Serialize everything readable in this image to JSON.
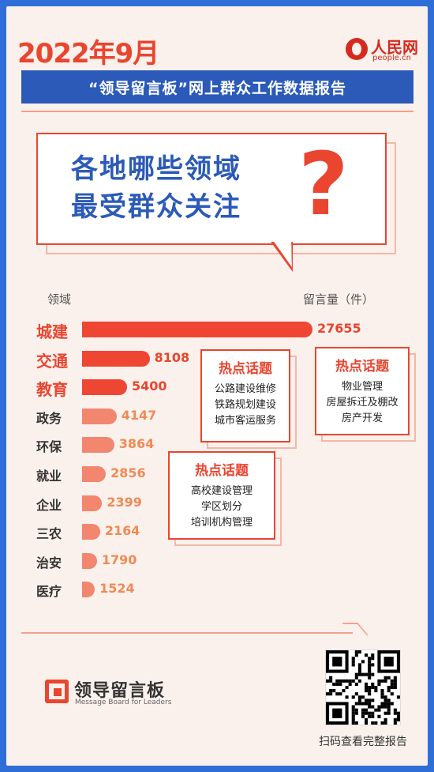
{
  "header": {
    "date": "2022年9月",
    "brand_cn": "人民网",
    "brand_url": "people.cn",
    "subtitle": "“领导留言板”网上群众工作数据报告"
  },
  "headline": {
    "line1": "各地哪些领域",
    "line2": "最受群众关注",
    "mark": "?"
  },
  "axis": {
    "left_label": "领域",
    "right_label": "留言量（件）"
  },
  "chart_data": {
    "type": "bar",
    "orientation": "horizontal",
    "categories": [
      "城建",
      "交通",
      "教育",
      "政务",
      "环保",
      "就业",
      "企业",
      "三农",
      "治安",
      "医疗"
    ],
    "values": [
      27655,
      8108,
      5400,
      4147,
      3864,
      2856,
      2399,
      2164,
      1790,
      1524
    ],
    "xlabel": "留言量（件）",
    "ylabel": "领域",
    "colors": {
      "top": "#ef4634",
      "rest": "#f2866f",
      "top_label": "#e9452f",
      "rest_label": "#ef8a55"
    }
  },
  "hot_topics": [
    {
      "title": "热点话题",
      "items": [
        "公路建设维修",
        "铁路规划建设",
        "城市客运服务"
      ]
    },
    {
      "title": "热点话题",
      "items": [
        "物业管理",
        "房屋拆迁及棚改",
        "房产开发"
      ]
    },
    {
      "title": "热点话题",
      "items": [
        "高校建设管理",
        "学区划分",
        "培训机构管理"
      ]
    }
  ],
  "footer": {
    "brand_cn": "领导留言板",
    "brand_en": "Message Board for Leaders",
    "qr_caption": "扫码查看完整报告"
  }
}
